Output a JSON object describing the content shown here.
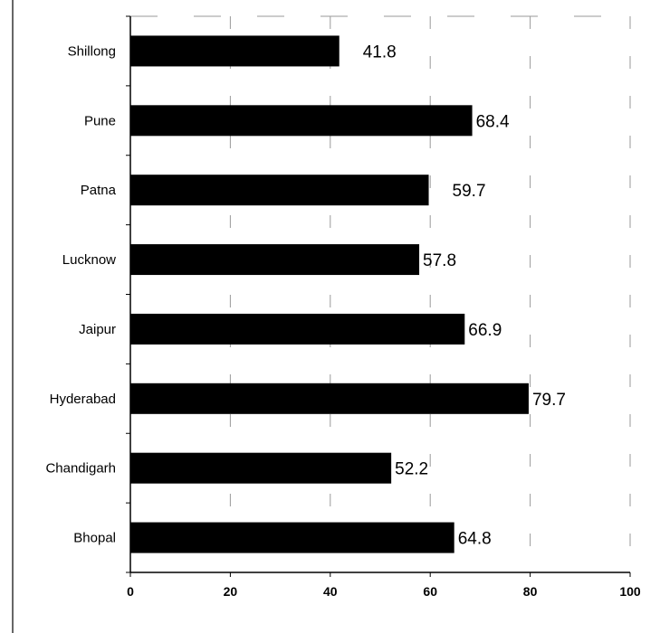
{
  "chart_data": {
    "type": "bar",
    "orientation": "horizontal",
    "categories": [
      "Shillong",
      "Pune",
      "Patna",
      "Lucknow",
      "Jaipur",
      "Hyderabad",
      "Chandigarh",
      "Bhopal"
    ],
    "values": [
      41.8,
      68.4,
      59.7,
      57.8,
      66.9,
      79.7,
      52.2,
      64.8
    ],
    "data_labels": [
      "41.8",
      "68.4",
      "59.7",
      "57.8",
      "66.9",
      "79.7",
      "52.2",
      "64.8"
    ],
    "xlim": [
      0,
      100
    ],
    "x_ticks": [
      "0",
      "20",
      "40",
      "60",
      "80",
      "100"
    ],
    "title": "",
    "xlabel": "",
    "ylabel": "",
    "bar_color": "#000000",
    "grid": "dashed vertical",
    "legend": "none"
  }
}
